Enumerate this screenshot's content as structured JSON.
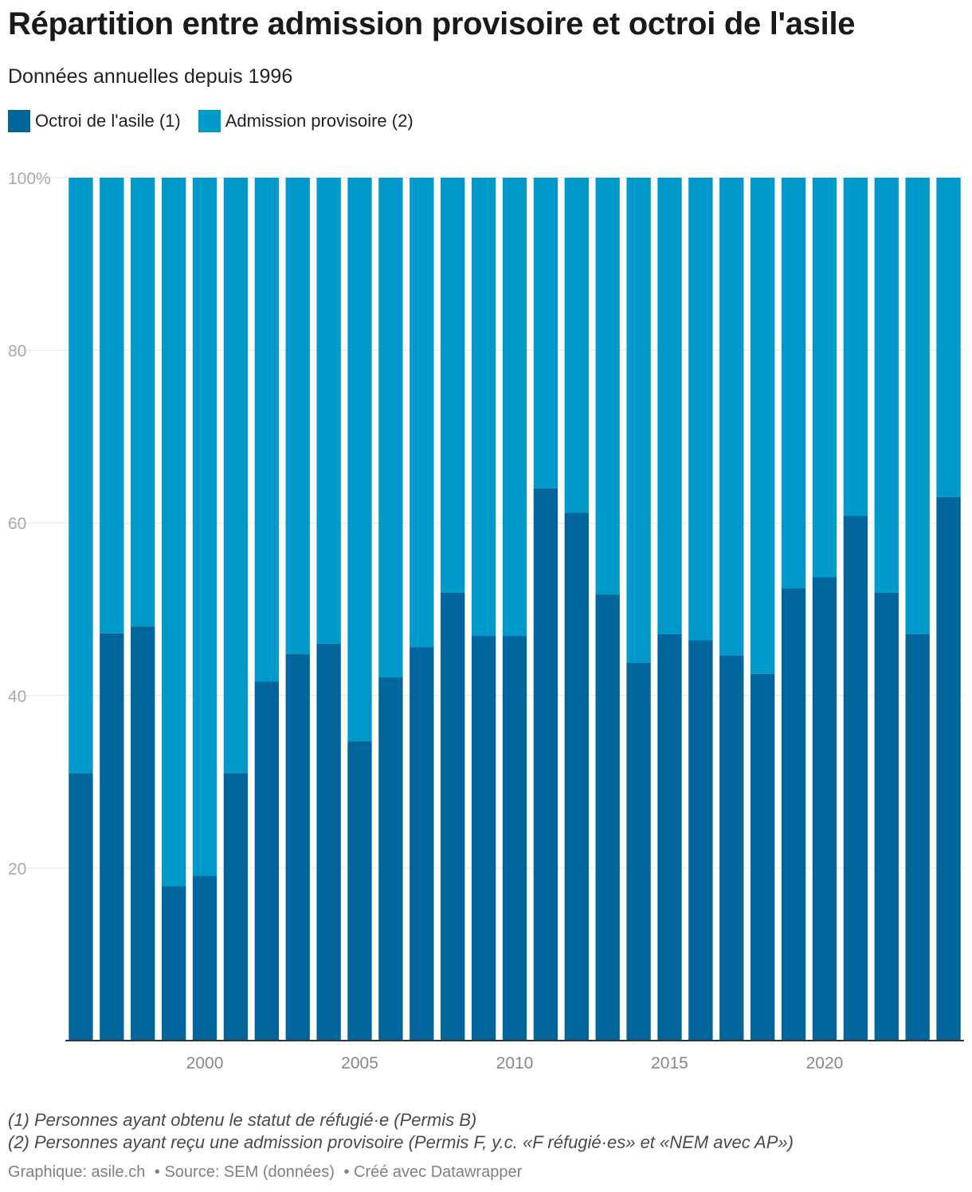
{
  "title": "Répartition entre admission provisoire et octroi de l'asile",
  "subtitle": "Données annuelles depuis 1996",
  "colors": {
    "asile": "#00659b",
    "admission": "#0099cc",
    "grid": "#e6e6e6",
    "tick": "#aaaaaa",
    "axis": "#333333"
  },
  "notes": [
    "(1) Personnes ayant obtenu le statut de réfugié·e (Permis B)",
    "(2) Personnes ayant reçu une admission provisoire (Permis F, y.c. «F réfugié·es» et «NEM avec AP»)"
  ],
  "credit": {
    "graphique": "Graphique: asile.ch",
    "source": "• Source: SEM (données)",
    "tool": "• Créé avec Datawrapper"
  },
  "chart_data": {
    "type": "bar",
    "stacked": true,
    "ylim": [
      0,
      100
    ],
    "y_ticks": [
      "20",
      "40",
      "60",
      "80",
      "100%"
    ],
    "y_tick_values": [
      20,
      40,
      60,
      80,
      100
    ],
    "x_tick_labels": [
      "2000",
      "2005",
      "2010",
      "2015",
      "2020"
    ],
    "legend_position": "top-left",
    "grid": true,
    "categories": [
      1996,
      1997,
      1998,
      1999,
      2000,
      2001,
      2002,
      2003,
      2004,
      2005,
      2006,
      2007,
      2008,
      2009,
      2010,
      2011,
      2012,
      2013,
      2014,
      2015,
      2016,
      2017,
      2018,
      2019,
      2020,
      2021,
      2022,
      2023,
      2024
    ],
    "series": [
      {
        "name": "Octroi de l'asile (1)",
        "values": [
          31,
          47.2,
          48,
          17.9,
          19.1,
          31,
          41.6,
          44.8,
          46,
          34.7,
          42.1,
          45.6,
          51.9,
          46.9,
          46.9,
          64,
          61.2,
          51.7,
          43.8,
          47.1,
          46.4,
          44.6,
          42.5,
          52.4,
          53.7,
          60.8,
          51.9,
          47.1,
          63
        ]
      },
      {
        "name": "Admission provisoire (2)",
        "values": [
          69,
          52.8,
          52,
          82.1,
          80.9,
          69,
          58.4,
          55.2,
          54,
          65.3,
          57.9,
          54.4,
          48.1,
          53.1,
          53.1,
          36,
          38.8,
          48.3,
          56.2,
          52.9,
          53.6,
          55.4,
          57.5,
          47.6,
          46.3,
          39.2,
          48.1,
          52.9,
          37
        ]
      }
    ]
  }
}
